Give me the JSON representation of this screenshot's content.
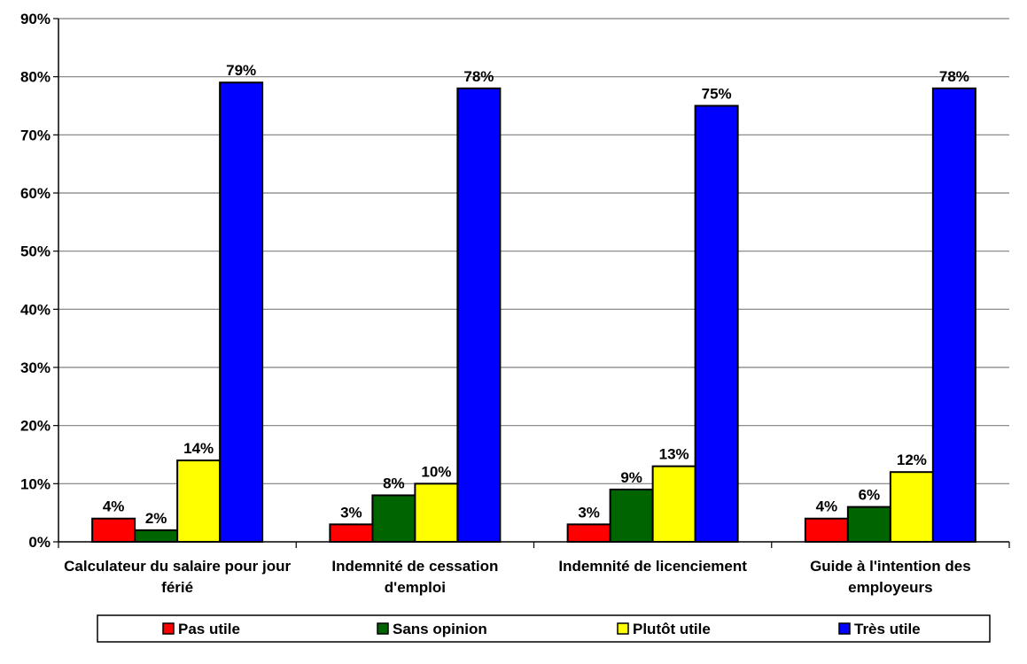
{
  "chart_data": {
    "type": "bar",
    "categories": [
      [
        "Calculateur du salaire pour jour",
        "férié"
      ],
      [
        "Indemnité de cessation",
        "d'emploi"
      ],
      [
        "Indemnité de licenciement"
      ],
      [
        "Guide à l'intention des",
        "employeurs"
      ]
    ],
    "series": [
      {
        "name": "Pas utile",
        "color": "#ff0000",
        "values": [
          4,
          3,
          3,
          4
        ],
        "labels": [
          "4%",
          "3%",
          "3%",
          "4%"
        ]
      },
      {
        "name": "Sans opinion",
        "color": "#006400",
        "values": [
          2,
          8,
          9,
          6
        ],
        "labels": [
          "2%",
          "8%",
          "9%",
          "6%"
        ]
      },
      {
        "name": "Plutôt utile",
        "color": "#ffff00",
        "values": [
          14,
          10,
          13,
          12
        ],
        "labels": [
          "14%",
          "10%",
          "13%",
          "12%"
        ]
      },
      {
        "name": "Très utile",
        "color": "#0000ff",
        "values": [
          79,
          78,
          75,
          78
        ],
        "labels": [
          "79%",
          "78%",
          "75%",
          "78%"
        ]
      }
    ],
    "ylim": [
      0,
      90
    ],
    "yticks": [
      0,
      10,
      20,
      30,
      40,
      50,
      60,
      70,
      80,
      90
    ],
    "ytick_labels": [
      "0%",
      "10%",
      "20%",
      "30%",
      "40%",
      "50%",
      "60%",
      "70%",
      "80%",
      "90%"
    ],
    "grid": true,
    "legend_position": "bottom",
    "title": "",
    "xlabel": "",
    "ylabel": ""
  }
}
